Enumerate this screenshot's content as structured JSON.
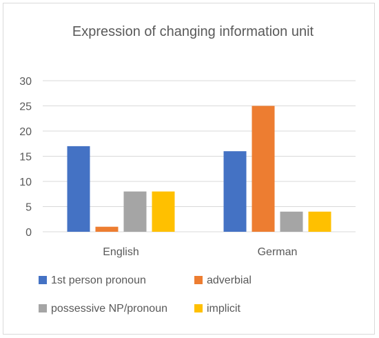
{
  "chart_data": {
    "type": "bar",
    "title": "Expression of changing information unit",
    "xlabel": "",
    "ylabel": "",
    "categories": [
      "English",
      "German"
    ],
    "ylim": [
      0,
      30
    ],
    "yticks": [
      0,
      5,
      10,
      15,
      20,
      25,
      30
    ],
    "grid": true,
    "legend": "bottom",
    "series": [
      {
        "name": "1st person pronoun",
        "color": "#4472C4",
        "values": [
          17,
          16
        ]
      },
      {
        "name": "adverbial",
        "color": "#ED7D31",
        "values": [
          1,
          25
        ]
      },
      {
        "name": "possessive NP/pronoun",
        "color": "#A5A5A5",
        "values": [
          8,
          4
        ]
      },
      {
        "name": "implicit",
        "color": "#FFC000",
        "values": [
          8,
          4
        ]
      }
    ]
  }
}
